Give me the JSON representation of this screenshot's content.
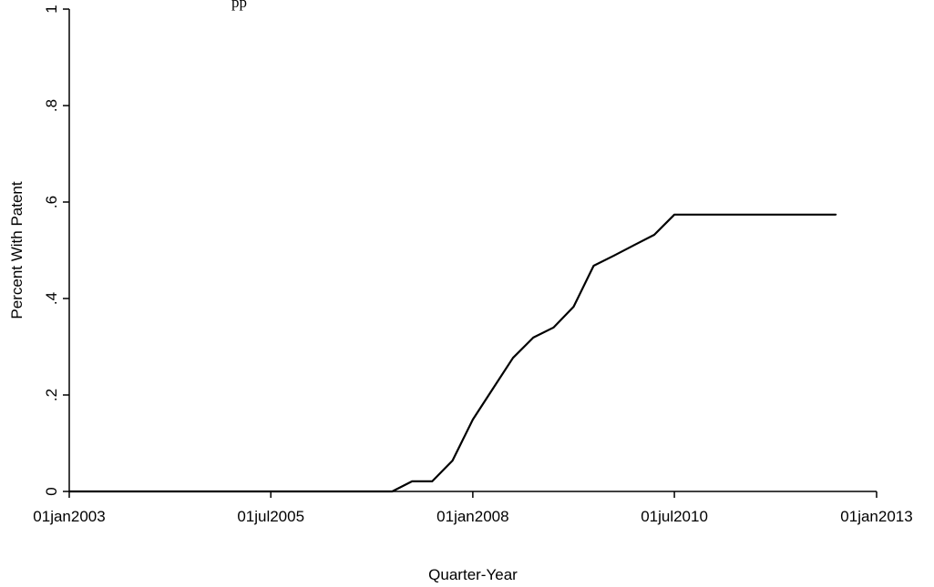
{
  "chart_data": {
    "type": "line",
    "top_text": "pp",
    "xlabel": "Quarter-Year",
    "ylabel": "Percent With Patent",
    "xlim": [
      "2003-01-01",
      "2013-01-01"
    ],
    "ylim": [
      0,
      1
    ],
    "x_ticks": [
      {
        "value": "2003-01-01",
        "label": "01jan2003"
      },
      {
        "value": "2005-07-01",
        "label": "01jul2005"
      },
      {
        "value": "2008-01-01",
        "label": "01jan2008"
      },
      {
        "value": "2010-07-01",
        "label": "01jul2010"
      },
      {
        "value": "2013-01-01",
        "label": "01jan2013"
      }
    ],
    "y_ticks": [
      {
        "value": 0,
        "label": "0"
      },
      {
        "value": 0.2,
        "label": ".2"
      },
      {
        "value": 0.4,
        "label": ".4"
      },
      {
        "value": 0.6,
        "label": ".6"
      },
      {
        "value": 0.8,
        "label": ".8"
      },
      {
        "value": 1,
        "label": "1"
      }
    ],
    "grid": false,
    "series": [
      {
        "color": "#000000",
        "points": [
          {
            "x": "2003-01-01",
            "y": 0
          },
          {
            "x": "2007-01-01",
            "y": 0
          },
          {
            "x": "2007-04-01",
            "y": 0.021
          },
          {
            "x": "2007-07-01",
            "y": 0.021
          },
          {
            "x": "2007-10-01",
            "y": 0.064
          },
          {
            "x": "2008-01-01",
            "y": 0.149
          },
          {
            "x": "2008-04-01",
            "y": 0.213
          },
          {
            "x": "2008-07-01",
            "y": 0.277
          },
          {
            "x": "2008-10-01",
            "y": 0.319
          },
          {
            "x": "2009-01-01",
            "y": 0.34
          },
          {
            "x": "2009-04-01",
            "y": 0.383
          },
          {
            "x": "2009-07-01",
            "y": 0.468
          },
          {
            "x": "2009-10-01",
            "y": 0.489
          },
          {
            "x": "2010-01-01",
            "y": 0.511
          },
          {
            "x": "2010-04-01",
            "y": 0.532
          },
          {
            "x": "2010-07-01",
            "y": 0.574
          },
          {
            "x": "2012-07-01",
            "y": 0.574
          }
        ]
      }
    ]
  }
}
